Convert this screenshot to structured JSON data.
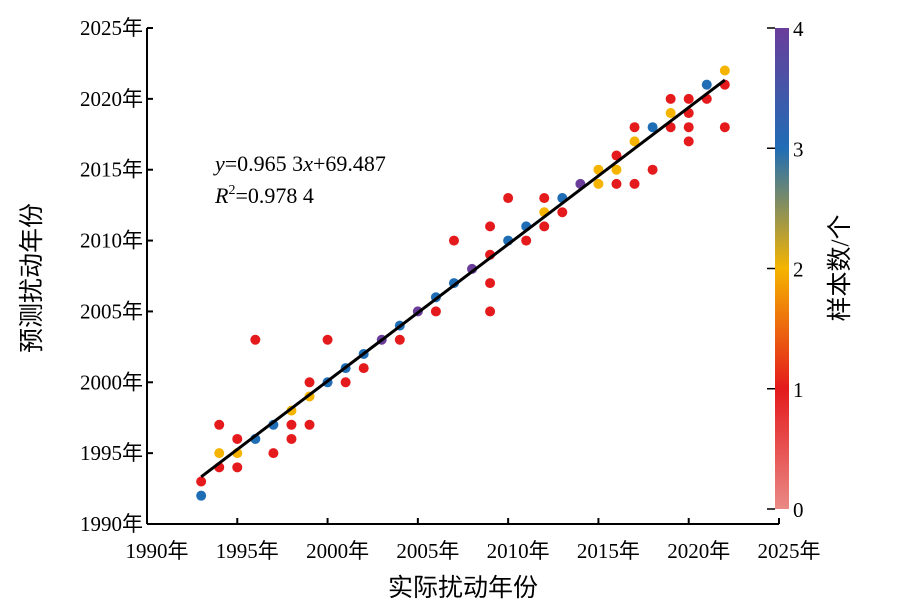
{
  "chart_data": {
    "type": "scatter",
    "title": "",
    "xlabel": "实际扰动年份",
    "ylabel": "预测扰动年份",
    "xlim": [
      1990,
      2025
    ],
    "ylim": [
      1990,
      2025
    ],
    "x_ticks": [
      "1990年",
      "1995年",
      "2000年",
      "2005年",
      "2010年",
      "2015年",
      "2020年",
      "2025年"
    ],
    "y_ticks": [
      "1990年",
      "1995年",
      "2000年",
      "2005年",
      "2010年",
      "2015年",
      "2020年",
      "2025年"
    ],
    "grid": false,
    "colorbar": {
      "label": "样本数/个",
      "range": [
        0,
        4
      ],
      "ticks": [
        "0",
        "1",
        "2",
        "3",
        "4"
      ],
      "colors": [
        "#ea8a86",
        "#e41a1c",
        "#f5b400",
        "#1f6db5",
        "#6a3d9a"
      ]
    },
    "fit": {
      "equation_y": "y",
      "equation_rest": "=0.965 3",
      "equation_x": "x",
      "equation_tail": "+69.487",
      "r2_label": "R",
      "r2_sup": "2",
      "r2_value": "=0.978 4",
      "slope": 0.9653,
      "intercept": 69.487,
      "x_range": [
        1993,
        2022
      ]
    },
    "points": [
      [
        1993,
        1993,
        1
      ],
      [
        1993,
        1992,
        3
      ],
      [
        1994,
        1997,
        1
      ],
      [
        1994,
        1995,
        2
      ],
      [
        1994,
        1994,
        1
      ],
      [
        1995,
        1996,
        1
      ],
      [
        1995,
        1995,
        2
      ],
      [
        1995,
        1994,
        1
      ],
      [
        1996,
        2003,
        1
      ],
      [
        1996,
        1996,
        3
      ],
      [
        1997,
        1997,
        3
      ],
      [
        1997,
        1995,
        1
      ],
      [
        1998,
        1998,
        2
      ],
      [
        1998,
        1997,
        1
      ],
      [
        1998,
        1996,
        1
      ],
      [
        1999,
        2000,
        1
      ],
      [
        1999,
        1999,
        2
      ],
      [
        1999,
        1997,
        1
      ],
      [
        2000,
        2000,
        3
      ],
      [
        2000,
        2003,
        1
      ],
      [
        2001,
        2001,
        3
      ],
      [
        2001,
        2000,
        1
      ],
      [
        2002,
        2002,
        3
      ],
      [
        2002,
        2001,
        1
      ],
      [
        2003,
        2003,
        4
      ],
      [
        2004,
        2004,
        3
      ],
      [
        2004,
        2003,
        1
      ],
      [
        2005,
        2005,
        4
      ],
      [
        2006,
        2006,
        3
      ],
      [
        2006,
        2005,
        1
      ],
      [
        2007,
        2007,
        3
      ],
      [
        2007,
        2010,
        1
      ],
      [
        2008,
        2008,
        4
      ],
      [
        2009,
        2011,
        1
      ],
      [
        2009,
        2009,
        1
      ],
      [
        2009,
        2007,
        1
      ],
      [
        2009,
        2005,
        1
      ],
      [
        2010,
        2010,
        3
      ],
      [
        2010,
        2013,
        1
      ],
      [
        2011,
        2011,
        3
      ],
      [
        2011,
        2010,
        1
      ],
      [
        2012,
        2012,
        2
      ],
      [
        2012,
        2013,
        1
      ],
      [
        2012,
        2011,
        1
      ],
      [
        2013,
        2013,
        3
      ],
      [
        2013,
        2012,
        1
      ],
      [
        2014,
        2014,
        4
      ],
      [
        2015,
        2015,
        2
      ],
      [
        2015,
        2014,
        2
      ],
      [
        2016,
        2016,
        1
      ],
      [
        2016,
        2015,
        2
      ],
      [
        2016,
        2014,
        1
      ],
      [
        2017,
        2017,
        2
      ],
      [
        2017,
        2018,
        1
      ],
      [
        2017,
        2014,
        1
      ],
      [
        2018,
        2018,
        3
      ],
      [
        2018,
        2015,
        1
      ],
      [
        2019,
        2020,
        1
      ],
      [
        2019,
        2019,
        2
      ],
      [
        2019,
        2018,
        1
      ],
      [
        2020,
        2020,
        1
      ],
      [
        2020,
        2019,
        1
      ],
      [
        2020,
        2018,
        1
      ],
      [
        2020,
        2017,
        1
      ],
      [
        2021,
        2021,
        3
      ],
      [
        2021,
        2020,
        1
      ],
      [
        2022,
        2022,
        2
      ],
      [
        2022,
        2021,
        1
      ],
      [
        2022,
        2018,
        1
      ]
    ]
  }
}
